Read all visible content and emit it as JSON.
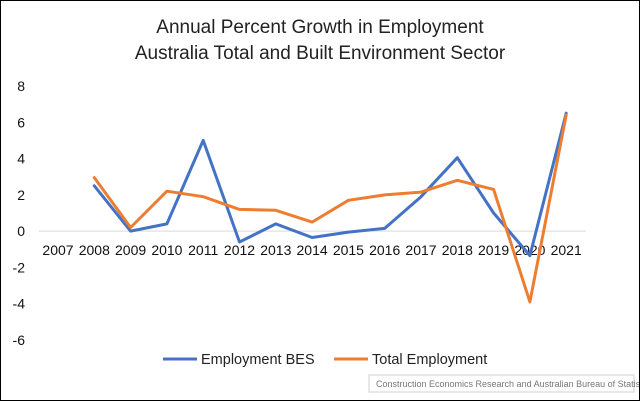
{
  "chart_data": {
    "type": "line",
    "title_lines": [
      "Annual Percent Growth in Employment",
      "Australia Total and Built Environment Sector"
    ],
    "xlabel": "",
    "ylabel": "",
    "categories": [
      "2007",
      "2008",
      "2009",
      "2010",
      "2011",
      "2012",
      "2013",
      "2014",
      "2015",
      "2016",
      "2017",
      "2018",
      "2019",
      "2020",
      "2021"
    ],
    "ylim": [
      -6,
      8
    ],
    "yticks": [
      -6,
      -4,
      -2,
      0,
      2,
      4,
      6,
      8
    ],
    "grid": false,
    "legend_position": "bottom",
    "series": [
      {
        "name": "Employment BES",
        "color": "#4472C4",
        "values": [
          null,
          2.5,
          0.0,
          0.4,
          5.0,
          -0.6,
          0.4,
          -0.35,
          -0.05,
          0.15,
          1.9,
          4.05,
          1.0,
          -1.35,
          6.5
        ]
      },
      {
        "name": "Total Employment",
        "color": "#ED7D31",
        "values": [
          null,
          2.95,
          0.2,
          2.2,
          1.9,
          1.2,
          1.15,
          0.5,
          1.7,
          2.0,
          2.15,
          2.8,
          2.3,
          -3.9,
          6.4
        ]
      }
    ],
    "source_note": "Construction Economics Research and Australian Bureau of Statistics"
  }
}
